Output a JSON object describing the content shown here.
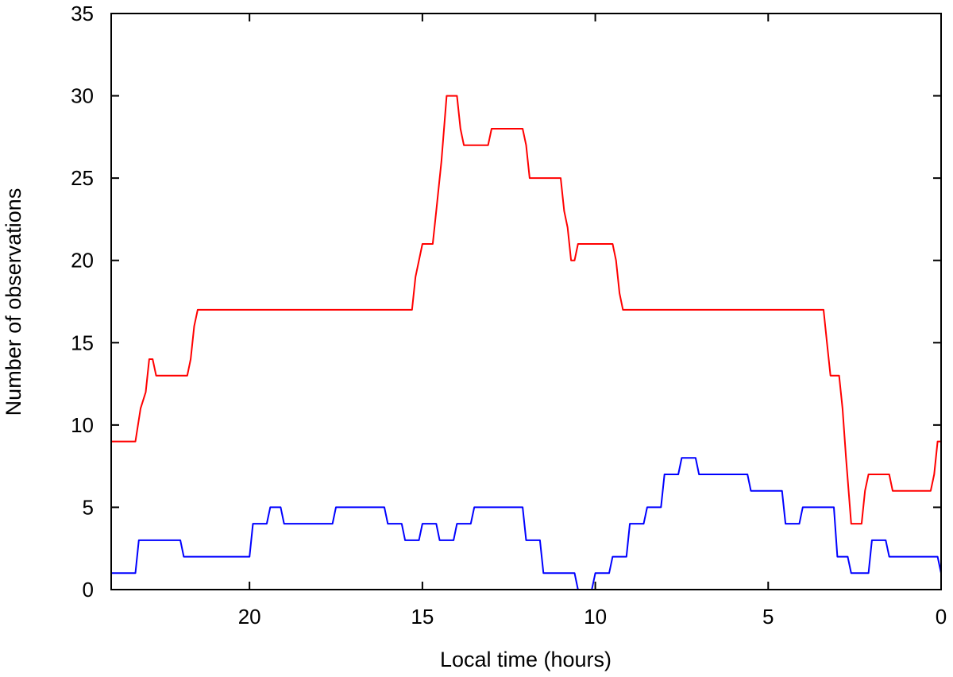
{
  "chart_data": {
    "type": "line",
    "title": "",
    "xlabel": "Local time (hours)",
    "ylabel": "Number of observations",
    "xlim": [
      24,
      0
    ],
    "ylim": [
      0,
      35
    ],
    "x_reversed": true,
    "grid": false,
    "x_ticks": [
      20,
      15,
      10,
      5,
      0
    ],
    "y_ticks": [
      0,
      5,
      10,
      15,
      20,
      25,
      30,
      35
    ],
    "series": [
      {
        "color": "#ff0000",
        "points": [
          [
            24.0,
            9
          ],
          [
            23.3,
            9
          ],
          [
            23.15,
            11
          ],
          [
            23.0,
            12
          ],
          [
            22.9,
            14
          ],
          [
            22.8,
            14
          ],
          [
            22.7,
            13
          ],
          [
            21.8,
            13
          ],
          [
            21.7,
            14
          ],
          [
            21.6,
            16
          ],
          [
            21.5,
            17
          ],
          [
            15.3,
            17
          ],
          [
            15.2,
            19
          ],
          [
            15.0,
            21
          ],
          [
            14.7,
            21
          ],
          [
            14.6,
            23
          ],
          [
            14.45,
            26
          ],
          [
            14.3,
            30
          ],
          [
            14.0,
            30
          ],
          [
            13.9,
            28
          ],
          [
            13.8,
            27
          ],
          [
            13.1,
            27
          ],
          [
            13.0,
            28
          ],
          [
            12.1,
            28
          ],
          [
            12.0,
            27
          ],
          [
            11.9,
            25
          ],
          [
            11.0,
            25
          ],
          [
            10.9,
            23
          ],
          [
            10.8,
            22
          ],
          [
            10.7,
            20
          ],
          [
            10.6,
            20
          ],
          [
            10.5,
            21
          ],
          [
            9.5,
            21
          ],
          [
            9.4,
            20
          ],
          [
            9.3,
            18
          ],
          [
            9.2,
            17
          ],
          [
            3.4,
            17
          ],
          [
            3.3,
            15
          ],
          [
            3.2,
            13
          ],
          [
            2.95,
            13
          ],
          [
            2.85,
            11
          ],
          [
            2.75,
            8
          ],
          [
            2.6,
            4
          ],
          [
            2.3,
            4
          ],
          [
            2.2,
            6
          ],
          [
            2.1,
            7
          ],
          [
            1.5,
            7
          ],
          [
            1.4,
            6
          ],
          [
            0.3,
            6
          ],
          [
            0.2,
            7
          ],
          [
            0.1,
            9
          ],
          [
            0.0,
            9
          ]
        ]
      },
      {
        "color": "#0000ff",
        "points": [
          [
            24.0,
            1
          ],
          [
            23.3,
            1
          ],
          [
            23.2,
            3
          ],
          [
            22.0,
            3
          ],
          [
            21.9,
            2
          ],
          [
            20.0,
            2
          ],
          [
            19.9,
            4
          ],
          [
            19.5,
            4
          ],
          [
            19.4,
            5
          ],
          [
            19.1,
            5
          ],
          [
            19.0,
            4
          ],
          [
            17.6,
            4
          ],
          [
            17.5,
            5
          ],
          [
            16.1,
            5
          ],
          [
            16.0,
            4
          ],
          [
            15.6,
            4
          ],
          [
            15.5,
            3
          ],
          [
            15.1,
            3
          ],
          [
            15.0,
            4
          ],
          [
            14.6,
            4
          ],
          [
            14.5,
            3
          ],
          [
            14.1,
            3
          ],
          [
            14.0,
            4
          ],
          [
            13.6,
            4
          ],
          [
            13.5,
            5
          ],
          [
            12.1,
            5
          ],
          [
            12.0,
            3
          ],
          [
            11.6,
            3
          ],
          [
            11.5,
            1
          ],
          [
            10.6,
            1
          ],
          [
            10.5,
            0
          ],
          [
            10.1,
            0
          ],
          [
            10.0,
            1
          ],
          [
            9.6,
            1
          ],
          [
            9.5,
            2
          ],
          [
            9.1,
            2
          ],
          [
            9.0,
            4
          ],
          [
            8.6,
            4
          ],
          [
            8.5,
            5
          ],
          [
            8.1,
            5
          ],
          [
            8.0,
            7
          ],
          [
            7.6,
            7
          ],
          [
            7.5,
            8
          ],
          [
            7.1,
            8
          ],
          [
            7.0,
            7
          ],
          [
            5.6,
            7
          ],
          [
            5.5,
            6
          ],
          [
            4.6,
            6
          ],
          [
            4.5,
            4
          ],
          [
            4.1,
            4
          ],
          [
            4.0,
            5
          ],
          [
            3.1,
            5
          ],
          [
            3.0,
            2
          ],
          [
            2.7,
            2
          ],
          [
            2.6,
            1
          ],
          [
            2.1,
            1
          ],
          [
            2.0,
            3
          ],
          [
            1.6,
            3
          ],
          [
            1.5,
            2
          ],
          [
            0.1,
            2
          ],
          [
            0.0,
            1
          ]
        ]
      }
    ]
  }
}
